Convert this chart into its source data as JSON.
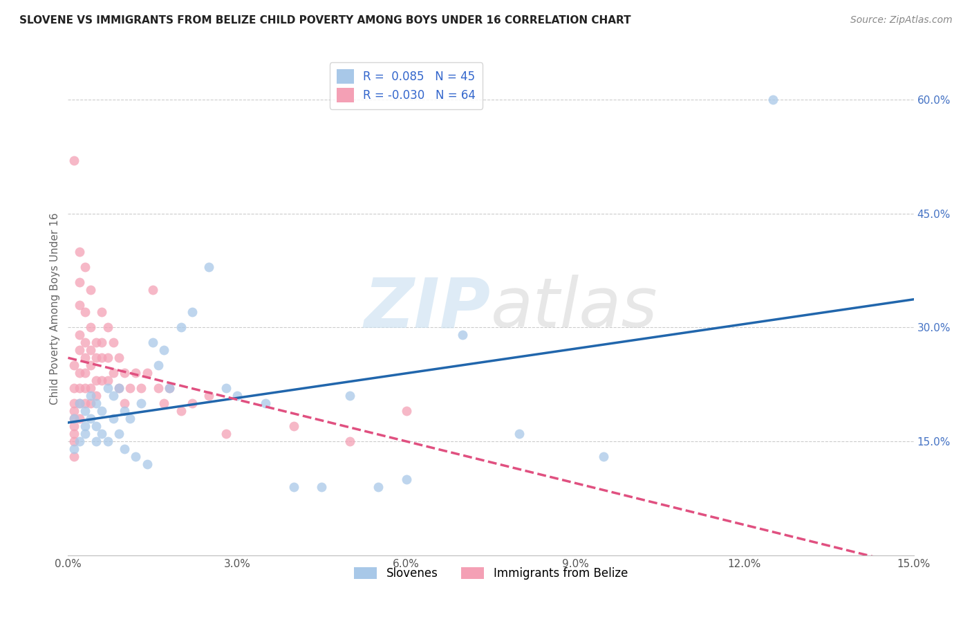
{
  "title": "SLOVENE VS IMMIGRANTS FROM BELIZE CHILD POVERTY AMONG BOYS UNDER 16 CORRELATION CHART",
  "source": "Source: ZipAtlas.com",
  "ylabel": "Child Poverty Among Boys Under 16",
  "legend_label_1": "Slovenes",
  "legend_label_2": "Immigrants from Belize",
  "R1": 0.085,
  "N1": 45,
  "R2": -0.03,
  "N2": 64,
  "color_blue": "#a8c8e8",
  "color_pink": "#f4a0b5",
  "color_blue_line": "#2166ac",
  "color_pink_line": "#e05080",
  "xmin": 0.0,
  "xmax": 0.15,
  "ymin": 0.0,
  "ymax": 0.65,
  "slovene_x": [
    0.001,
    0.001,
    0.002,
    0.002,
    0.003,
    0.003,
    0.003,
    0.004,
    0.004,
    0.005,
    0.005,
    0.005,
    0.006,
    0.006,
    0.007,
    0.007,
    0.008,
    0.008,
    0.009,
    0.009,
    0.01,
    0.01,
    0.011,
    0.012,
    0.013,
    0.014,
    0.015,
    0.016,
    0.017,
    0.018,
    0.02,
    0.022,
    0.025,
    0.028,
    0.03,
    0.035,
    0.04,
    0.045,
    0.05,
    0.055,
    0.06,
    0.07,
    0.08,
    0.095,
    0.125
  ],
  "slovene_y": [
    0.14,
    0.18,
    0.15,
    0.2,
    0.17,
    0.19,
    0.16,
    0.18,
    0.21,
    0.15,
    0.17,
    0.2,
    0.16,
    0.19,
    0.22,
    0.15,
    0.21,
    0.18,
    0.22,
    0.16,
    0.19,
    0.14,
    0.18,
    0.13,
    0.2,
    0.12,
    0.28,
    0.25,
    0.27,
    0.22,
    0.3,
    0.32,
    0.38,
    0.22,
    0.21,
    0.2,
    0.09,
    0.09,
    0.21,
    0.09,
    0.1,
    0.29,
    0.16,
    0.13,
    0.6
  ],
  "belize_x": [
    0.001,
    0.001,
    0.001,
    0.001,
    0.001,
    0.001,
    0.001,
    0.001,
    0.001,
    0.001,
    0.002,
    0.002,
    0.002,
    0.002,
    0.002,
    0.002,
    0.002,
    0.002,
    0.002,
    0.003,
    0.003,
    0.003,
    0.003,
    0.003,
    0.003,
    0.003,
    0.004,
    0.004,
    0.004,
    0.004,
    0.004,
    0.004,
    0.005,
    0.005,
    0.005,
    0.005,
    0.006,
    0.006,
    0.006,
    0.006,
    0.007,
    0.007,
    0.007,
    0.008,
    0.008,
    0.009,
    0.009,
    0.01,
    0.01,
    0.011,
    0.012,
    0.013,
    0.014,
    0.015,
    0.016,
    0.017,
    0.018,
    0.02,
    0.022,
    0.025,
    0.028,
    0.04,
    0.05,
    0.06
  ],
  "belize_y": [
    0.52,
    0.25,
    0.22,
    0.2,
    0.19,
    0.18,
    0.17,
    0.16,
    0.15,
    0.13,
    0.4,
    0.36,
    0.33,
    0.29,
    0.27,
    0.24,
    0.22,
    0.2,
    0.18,
    0.38,
    0.32,
    0.28,
    0.26,
    0.24,
    0.22,
    0.2,
    0.35,
    0.3,
    0.27,
    0.25,
    0.22,
    0.2,
    0.28,
    0.26,
    0.23,
    0.21,
    0.32,
    0.28,
    0.26,
    0.23,
    0.3,
    0.26,
    0.23,
    0.28,
    0.24,
    0.26,
    0.22,
    0.24,
    0.2,
    0.22,
    0.24,
    0.22,
    0.24,
    0.35,
    0.22,
    0.2,
    0.22,
    0.19,
    0.2,
    0.21,
    0.16,
    0.17,
    0.15,
    0.19
  ]
}
